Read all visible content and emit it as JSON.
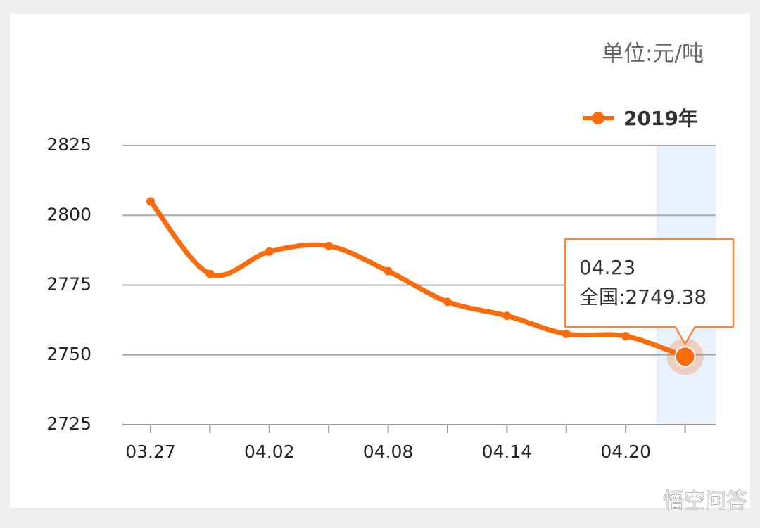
{
  "chart_data": {
    "type": "line",
    "unit": "单位:元/吨",
    "categories": [
      "03.27",
      null,
      "04.02",
      null,
      "04.08",
      null,
      "04.14",
      null,
      "04.20",
      null
    ],
    "series": [
      {
        "name": "2019年",
        "color": "#f96b0b",
        "values": [
          2805,
          2779,
          2787,
          2789,
          2780,
          2769,
          2764,
          2757.5,
          2756.7,
          2749.38
        ]
      }
    ],
    "ylim": [
      2725,
      2825
    ],
    "yticks": [
      2725,
      2750,
      2775,
      2800,
      2825
    ],
    "grid": true,
    "legend": "top-right",
    "tooltip": {
      "title": "04.23",
      "text": "全国:2749.38"
    }
  },
  "watermark": "悟空问答"
}
